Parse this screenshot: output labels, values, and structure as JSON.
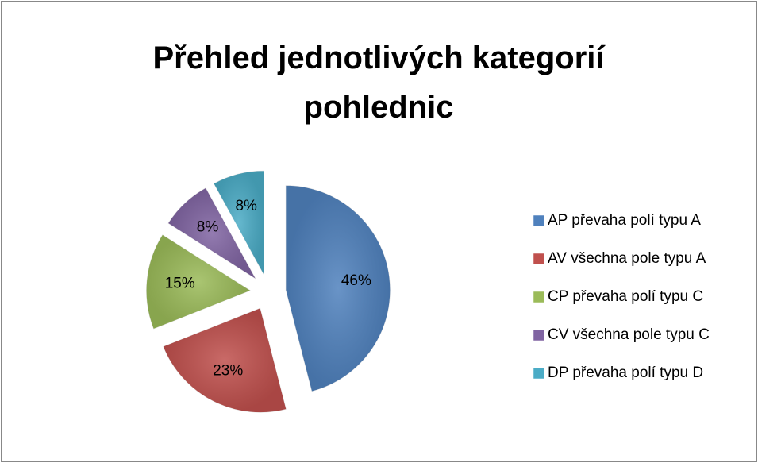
{
  "chart_data": {
    "type": "pie",
    "title": "Přehled jednotlivých kategorií pohlednic",
    "categories": [
      "AP převaha polí typu A",
      "AV všechna pole typu A",
      "CP převaha polí typu C",
      "CV všechna pole typu C",
      "DP převaha polí typu D"
    ],
    "values": [
      46,
      23,
      15,
      8,
      8
    ],
    "value_labels": [
      "46%",
      "23%",
      "15%",
      "8%",
      "8%"
    ],
    "colors": [
      "#4f81bd",
      "#c0504d",
      "#9bbb59",
      "#8064a2",
      "#4bacc6"
    ],
    "legend": "right"
  }
}
